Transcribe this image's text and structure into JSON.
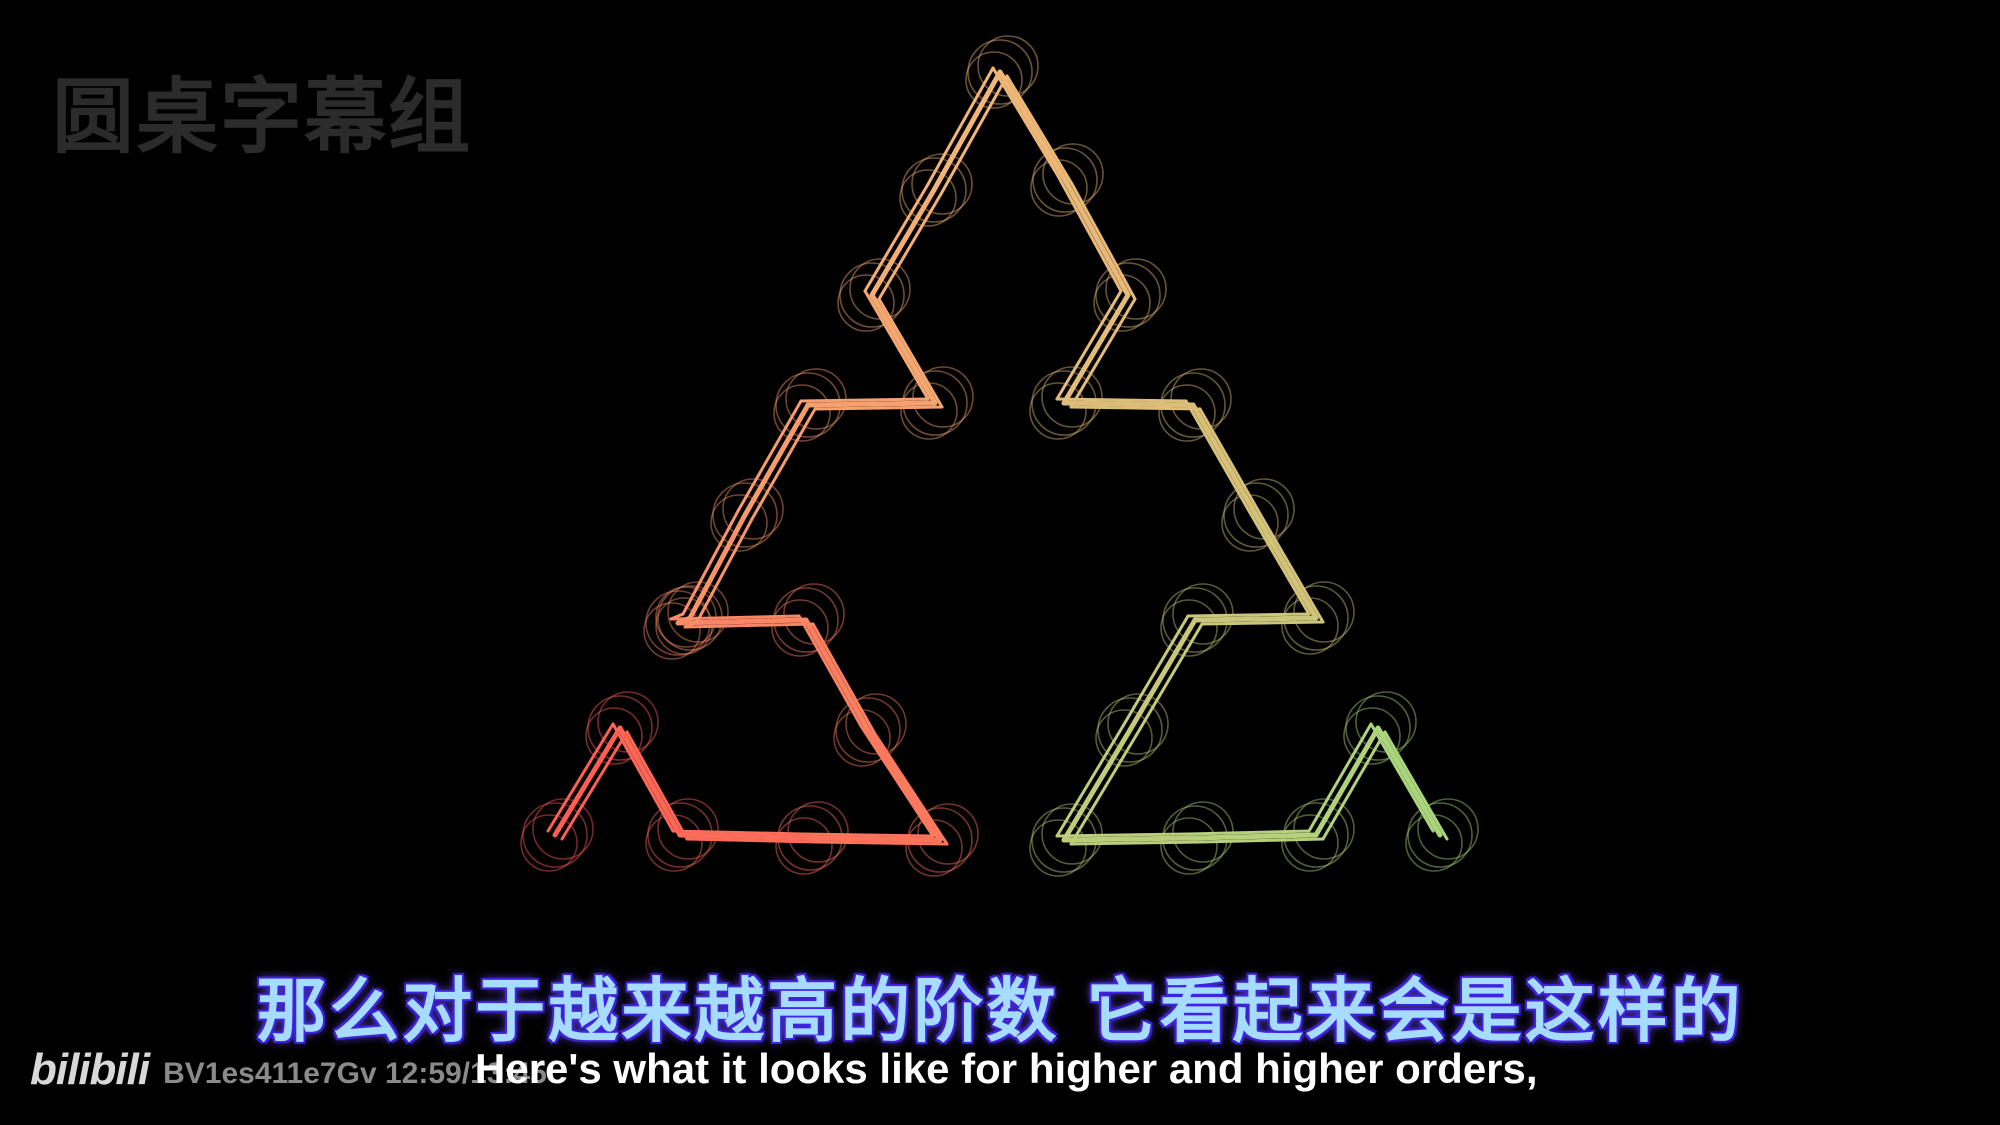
{
  "watermark": "圆桌字幕组",
  "subtitle_cn": "那么对于越来越高的阶数  它看起来会是这样的",
  "subtitle_en": "Here's what it looks like for higher and higher orders,",
  "brand": {
    "logo": "bilibili",
    "video_id": "BV1es411e7Gv 12:59/13:45"
  },
  "colors": {
    "background": "#000000",
    "curve_start": "#ff5c52",
    "curve_mid": "#f3b477",
    "curve_end": "#a8d67c",
    "subtitle_cn": "#a6dcff",
    "subtitle_en": "#ffffff"
  },
  "figure": {
    "name": "sierpinski-arrowhead-curve",
    "order_layers": 3
  }
}
